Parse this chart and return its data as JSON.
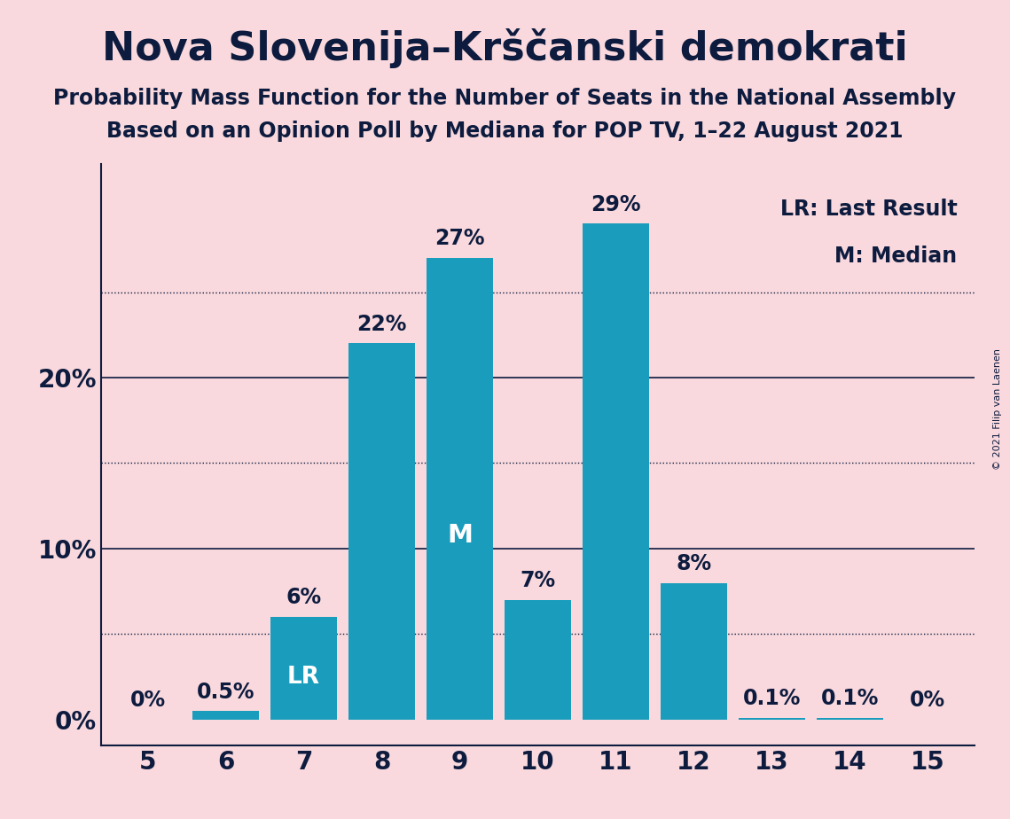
{
  "title": "Nova Slovenija–Krščanski demokrati",
  "subtitle1": "Probability Mass Function for the Number of Seats in the National Assembly",
  "subtitle2": "Based on an Opinion Poll by Mediana for POP TV, 1–22 August 2021",
  "copyright": "© 2021 Filip van Laenen",
  "seats": [
    5,
    6,
    7,
    8,
    9,
    10,
    11,
    12,
    13,
    14,
    15
  ],
  "probabilities": [
    0.0,
    0.5,
    6.0,
    22.0,
    27.0,
    7.0,
    29.0,
    8.0,
    0.1,
    0.1,
    0.0
  ],
  "bar_color": "#1a9dbc",
  "background_color": "#f9d9dd",
  "text_color": "#0d1b3e",
  "ylabel_ticks": [
    0,
    10,
    20
  ],
  "dotted_grid_lines": [
    5,
    15,
    25
  ],
  "solid_grid_lines": [
    10,
    20
  ],
  "lr_seat": 7,
  "median_seat": 9,
  "legend_text1": "LR: Last Result",
  "legend_text2": "M: Median",
  "title_fontsize": 32,
  "subtitle_fontsize": 17,
  "bar_label_fontsize": 17,
  "axis_label_fontsize": 20,
  "legend_fontsize": 17,
  "ylim_max": 32.5,
  "ylim_min": -1.5
}
